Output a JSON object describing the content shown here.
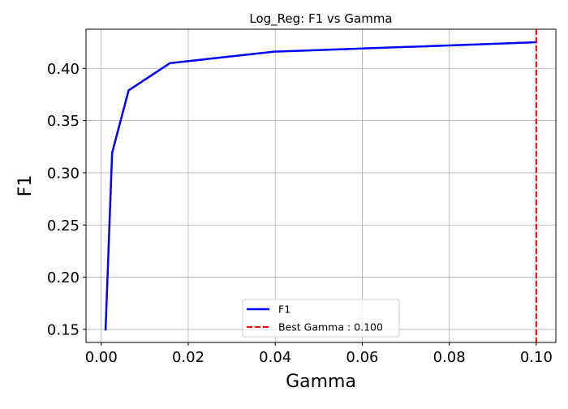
{
  "chart_data": {
    "type": "line",
    "title": "Log_Reg: F1 vs Gamma",
    "xlabel": "Gamma",
    "ylabel": "F1",
    "xlim": [
      -0.0035,
      0.1045
    ],
    "ylim": [
      0.1375,
      0.4375
    ],
    "grid": true,
    "legend_position": "lower-center",
    "xticks": [
      0.0,
      0.02,
      0.04,
      0.06,
      0.08,
      0.1
    ],
    "xtick_labels": [
      "0.00",
      "0.02",
      "0.04",
      "0.06",
      "0.08",
      "0.10"
    ],
    "yticks": [
      0.15,
      0.2,
      0.25,
      0.3,
      0.35,
      0.4
    ],
    "ytick_labels": [
      "0.15",
      "0.20",
      "0.25",
      "0.30",
      "0.35",
      "0.40"
    ],
    "series": [
      {
        "name": "F1",
        "color": "#0000ff",
        "style": "solid",
        "x": [
          0.001,
          0.0025,
          0.0063,
          0.0158,
          0.0398,
          0.1
        ],
        "y": [
          0.15,
          0.319,
          0.379,
          0.405,
          0.416,
          0.425
        ]
      }
    ],
    "reference_lines": [
      {
        "orientation": "vertical",
        "name": "Best Gamma : 0.100",
        "value": 0.1,
        "color": "#ff0000",
        "style": "dashed"
      }
    ]
  }
}
